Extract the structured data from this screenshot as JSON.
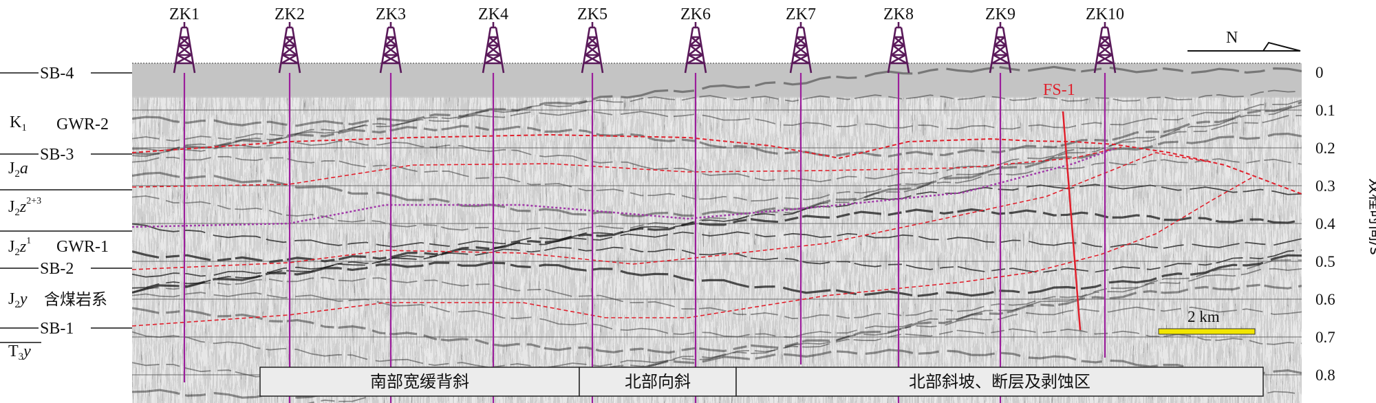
{
  "wells": [
    "ZK1",
    "ZK2",
    "ZK3",
    "ZK4",
    "ZK5",
    "ZK6",
    "ZK7",
    "ZK8",
    "ZK9",
    "ZK10"
  ],
  "sequence_boundaries": [
    "SB-4",
    "SB-3",
    "SB-2",
    "SB-1"
  ],
  "formations": {
    "k1": "K",
    "k1_sub": "1",
    "j2a": "J",
    "j2a_sub": "2",
    "j2a_it": "a",
    "j2z23": "J",
    "j2z23_sub": "2",
    "j2z23_it": "z",
    "j2z23_sup": "2+3",
    "j2z1": "J",
    "j2z1_sub": "2",
    "j2z1_it": "z",
    "j2z1_sup": "1",
    "j2y": "J",
    "j2y_sub": "2",
    "j2y_it": "y",
    "t3y": "T",
    "t3y_sub": "3",
    "t3y_it": "y"
  },
  "gwr": [
    "GWR-2",
    "GWR-1"
  ],
  "coal_series": "含煤岩系",
  "fault_label": "FS-1",
  "north": "N",
  "scale_label": "2 km",
  "axis": {
    "title": "双程时间/s",
    "ticks": [
      "0",
      "0.1",
      "0.2",
      "0.3",
      "0.4",
      "0.5",
      "0.6",
      "0.7",
      "0.8"
    ]
  },
  "zones": [
    "南部宽缓背斜",
    "北部向斜",
    "北部斜坡、断层及剥蚀区"
  ],
  "colors": {
    "well_line": "#9b1e9b",
    "horizon": "#e0202c",
    "fault": "#e0202c",
    "scale_bar": "#f2e600",
    "seismic_bg": "#bdbdbd"
  }
}
